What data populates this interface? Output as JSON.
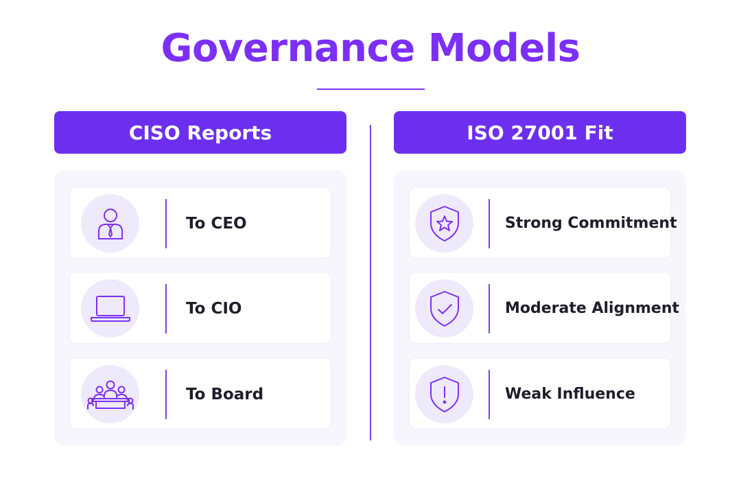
{
  "title": "Governance Models",
  "left_column": {
    "header": "CISO Reports",
    "items": [
      {
        "label": "To CEO",
        "icon": "executive-person-icon"
      },
      {
        "label": "To CIO",
        "icon": "laptop-icon"
      },
      {
        "label": "To Board",
        "icon": "board-meeting-icon"
      }
    ]
  },
  "right_column": {
    "header": "ISO 27001 Fit",
    "items": [
      {
        "label": "Strong Commitment",
        "icon": "shield-star-icon"
      },
      {
        "label": "Moderate Alignment",
        "icon": "shield-check-icon"
      },
      {
        "label": "Weak Influence",
        "icon": "shield-exclamation-icon"
      }
    ]
  },
  "colors": {
    "accent": "#7b2ff7",
    "header_bg": "#6c2ff0",
    "icon_bg": "#efeafb",
    "panel_bg": "#f7f6fc",
    "text": "#1e1e2a"
  }
}
